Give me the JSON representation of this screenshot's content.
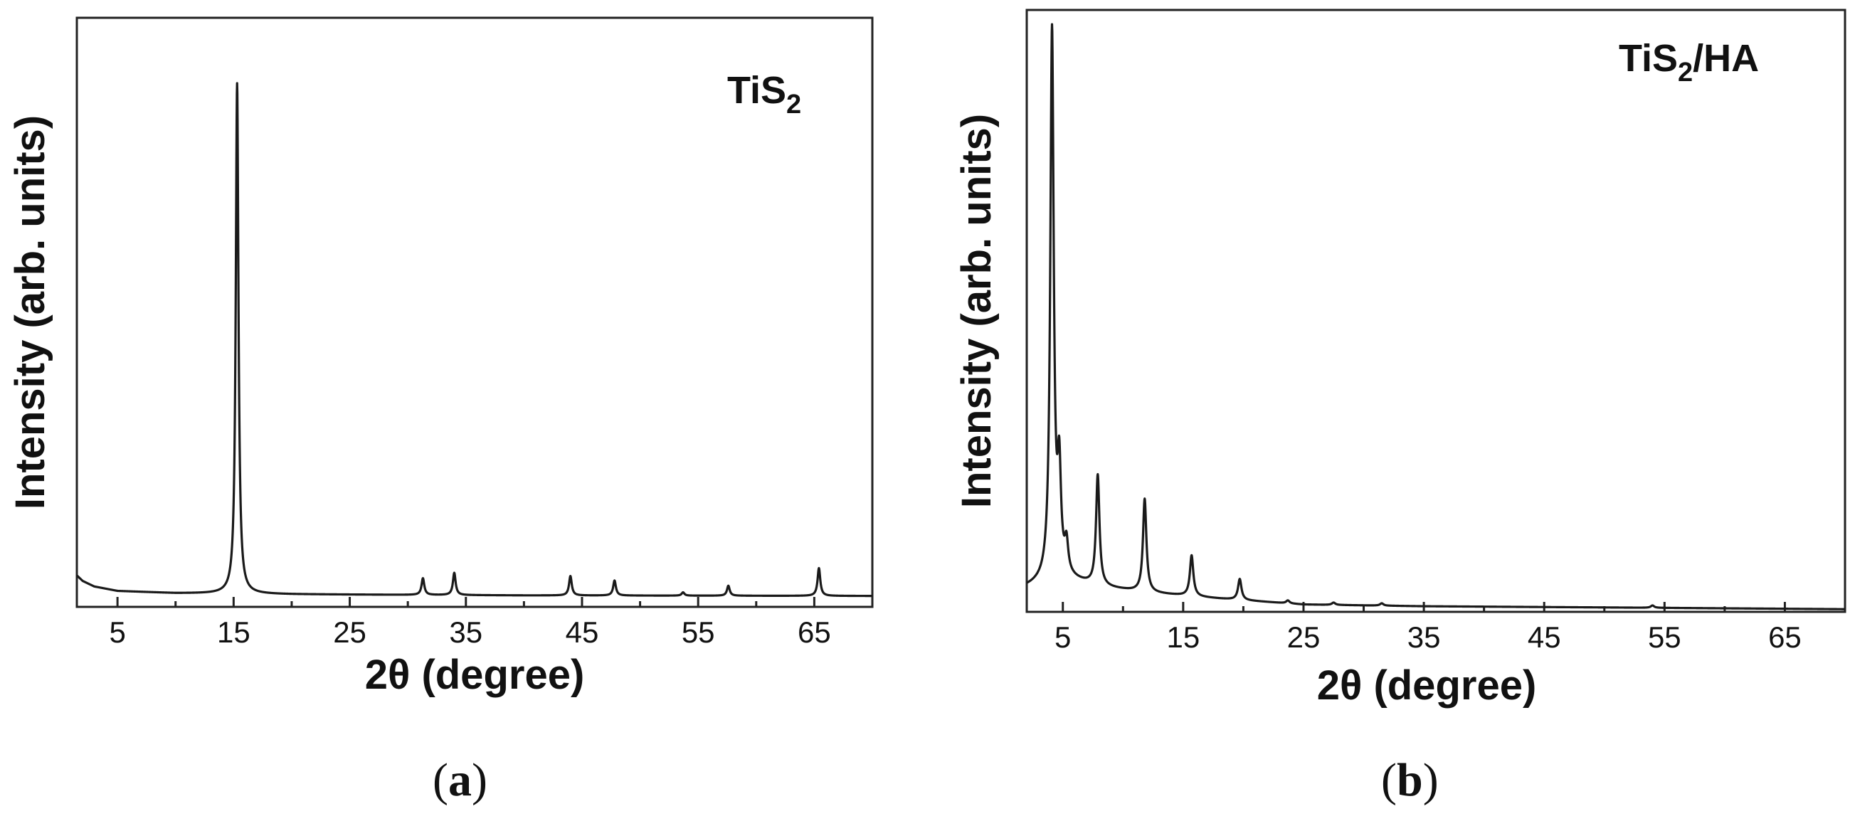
{
  "chart_data": [
    {
      "panel": "(a)",
      "panel_letter": "a",
      "type": "line",
      "annotation": {
        "main": "TiS",
        "sub": "2",
        "tail": ""
      },
      "xlabel": "2θ (degree)",
      "ylabel": "Intensity (arb. units)",
      "xlim": [
        1.5,
        70
      ],
      "ylim": [
        0,
        1
      ],
      "xticks": [
        5,
        15,
        25,
        35,
        45,
        55,
        65
      ],
      "yticks_shown": false,
      "grid": false,
      "series": [
        {
          "baseline": [
            [
              1.5,
              0.04
            ],
            [
              2.0,
              0.03
            ],
            [
              3.0,
              0.02
            ],
            [
              5.0,
              0.012
            ],
            [
              10.0,
              0.008
            ],
            [
              20.0,
              0.006
            ],
            [
              40.0,
              0.004
            ],
            [
              70.0,
              0.003
            ]
          ],
          "peaks": [
            {
              "x": 15.3,
              "y": 0.92
            },
            {
              "x": 31.3,
              "y": 0.03
            },
            {
              "x": 34.0,
              "y": 0.04
            },
            {
              "x": 44.0,
              "y": 0.035
            },
            {
              "x": 47.8,
              "y": 0.027
            },
            {
              "x": 53.7,
              "y": 0.006
            },
            {
              "x": 57.6,
              "y": 0.018
            },
            {
              "x": 65.4,
              "y": 0.05
            }
          ]
        }
      ]
    },
    {
      "panel": "(b)",
      "panel_letter": "b",
      "type": "line",
      "annotation": {
        "main": "TiS",
        "sub": "2",
        "tail": "/HA"
      },
      "xlabel": "2θ (degree)",
      "ylabel": "Intensity (arb. units)",
      "xlim": [
        2,
        70
      ],
      "ylim": [
        0,
        1
      ],
      "xticks": [
        5,
        15,
        25,
        35,
        45,
        55,
        65
      ],
      "yticks_shown": false,
      "grid": false,
      "series": [
        {
          "baseline": [
            [
              2.0,
              0.045
            ],
            [
              3.0,
              0.05
            ],
            [
              5.0,
              0.06
            ],
            [
              8.0,
              0.045
            ],
            [
              12.0,
              0.035
            ],
            [
              18.0,
              0.025
            ],
            [
              25.0,
              0.015
            ],
            [
              35.0,
              0.012
            ],
            [
              50.0,
              0.01
            ],
            [
              70.0,
              0.007
            ]
          ],
          "peaks": [
            {
              "x": 4.1,
              "y": 0.94
            },
            {
              "x": 4.7,
              "y": 0.17
            },
            {
              "x": 5.3,
              "y": 0.05
            },
            {
              "x": 7.9,
              "y": 0.19
            },
            {
              "x": 11.8,
              "y": 0.16
            },
            {
              "x": 15.7,
              "y": 0.07
            },
            {
              "x": 19.7,
              "y": 0.036
            },
            {
              "x": 23.7,
              "y": 0.005
            },
            {
              "x": 27.5,
              "y": 0.004
            },
            {
              "x": 31.5,
              "y": 0.004
            },
            {
              "x": 54.0,
              "y": 0.004
            }
          ]
        }
      ]
    }
  ]
}
